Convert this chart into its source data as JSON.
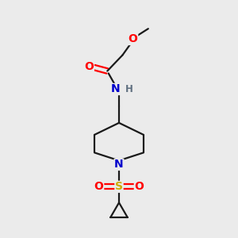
{
  "bg_color": "#ebebeb",
  "bond_color": "#1a1a1a",
  "line_width": 1.6,
  "atom_colors": {
    "O": "#ff0000",
    "N": "#0000cc",
    "S": "#ccaa00",
    "H": "#607080",
    "C": "#1a1a1a"
  },
  "font_size_atom": 10,
  "font_size_small": 8.5,
  "figsize": [
    3.0,
    3.0
  ],
  "dpi": 100
}
